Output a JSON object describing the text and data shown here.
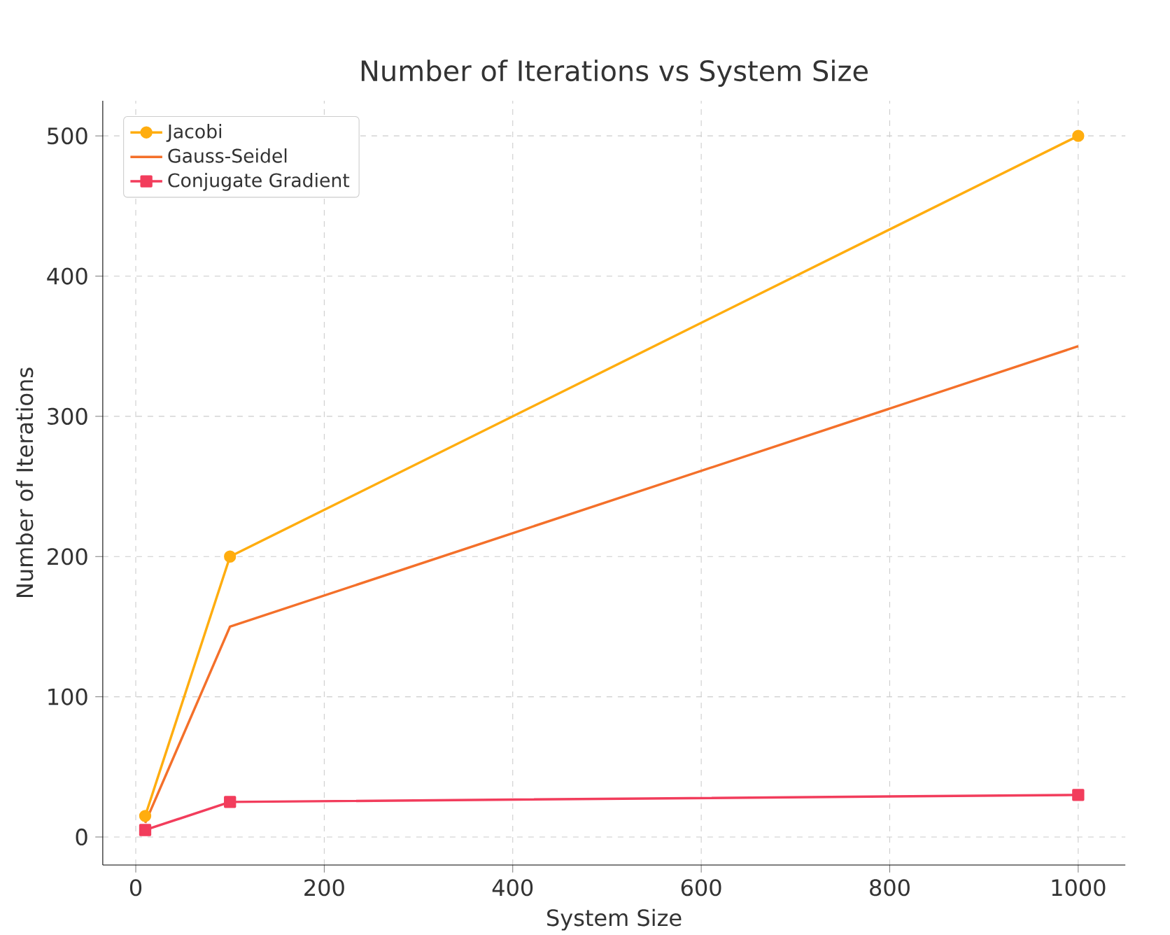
{
  "chart_data": {
    "type": "line",
    "title": "Number of Iterations vs System Size",
    "xlabel": "System Size",
    "ylabel": "Number of Iterations",
    "x": [
      10,
      100,
      1000
    ],
    "series": [
      {
        "name": "Jacobi",
        "color": "#ffad0f",
        "values": [
          15,
          200,
          500
        ],
        "marker": "circle"
      },
      {
        "name": "Gauss-Seidel",
        "color": "#f4702a",
        "values": [
          10,
          150,
          350
        ],
        "marker": "none"
      },
      {
        "name": "Conjugate Gradient",
        "color": "#f23d5c",
        "values": [
          5,
          25,
          30
        ],
        "marker": "square"
      }
    ],
    "xlim": [
      -35,
      1050
    ],
    "ylim": [
      -20,
      525
    ],
    "xticks": [
      0,
      200,
      400,
      600,
      800,
      1000
    ],
    "yticks": [
      0,
      100,
      200,
      300,
      400,
      500
    ],
    "grid": true,
    "legend": "top left",
    "line_style": "solid"
  }
}
